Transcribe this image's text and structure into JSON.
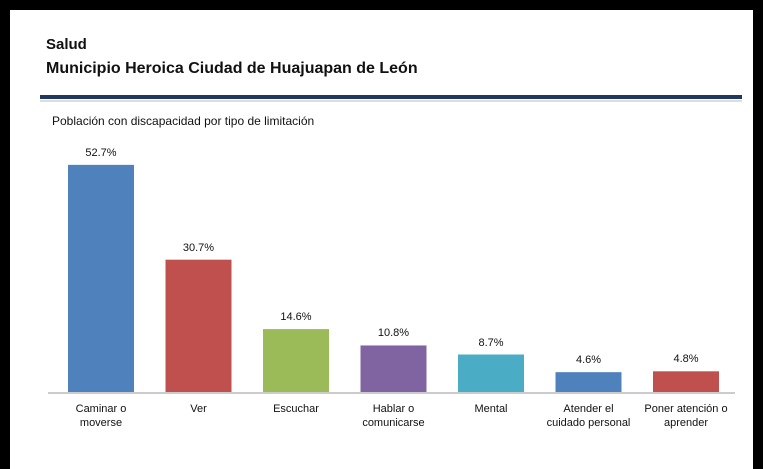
{
  "chart_data": {
    "type": "bar",
    "title": "Salud",
    "subtitle": "Municipio Heroica Ciudad de Huajuapan de León",
    "chart_label": "Población con discapacidad por tipo de limitación",
    "categories": [
      "Caminar o moverse",
      "Ver",
      "Escuchar",
      "Hablar o comunicarse",
      "Mental",
      "Atender el cuidado personal",
      "Poner atención o aprender"
    ],
    "values": [
      52.7,
      30.7,
      14.6,
      10.8,
      8.7,
      4.6,
      4.8
    ],
    "value_labels": [
      "52.7%",
      "30.7%",
      "14.6%",
      "10.8%",
      "8.7%",
      "4.6%",
      "4.8%"
    ],
    "colors": [
      "#4f81bd",
      "#c0504d",
      "#9bbb59",
      "#8064a2",
      "#4bacc6",
      "#4f81bd",
      "#c0504d"
    ]
  }
}
